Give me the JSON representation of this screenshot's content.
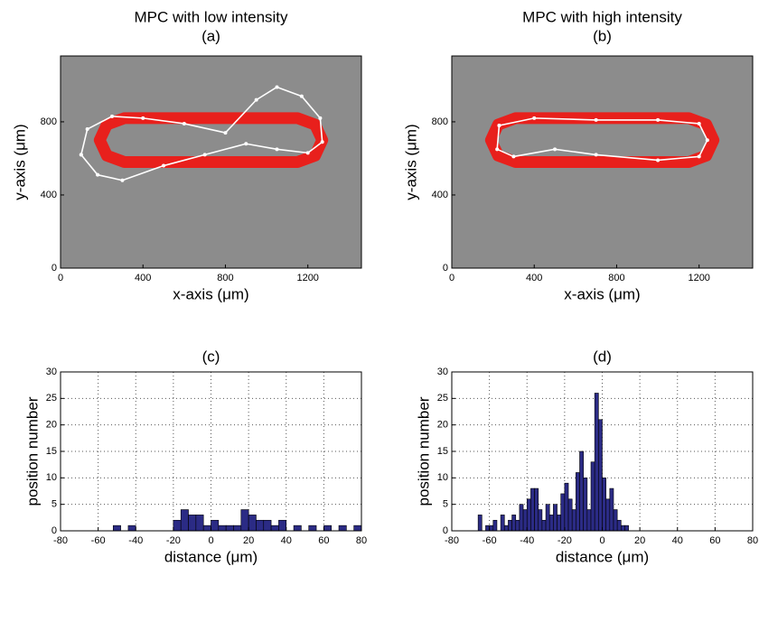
{
  "chart_data": [
    {
      "type": "line",
      "title": "MPC with low intensity",
      "subtitle": "(a)",
      "xlabel": "x-axis (μm)",
      "ylabel": "y-axis (μm)",
      "xlim": [
        0,
        1460
      ],
      "ylim": [
        0,
        1160
      ],
      "xticks": [
        0,
        400,
        800,
        1200
      ],
      "yticks": [
        0,
        400,
        800
      ],
      "background": "#8c8c8c",
      "series": [
        {
          "color": "#e8201c",
          "marker": false,
          "x": [
            310,
            1150,
            1235,
            1270,
            1235,
            1150,
            310,
            225,
            190,
            225,
            310
          ],
          "y": [
            820,
            820,
            785,
            700,
            615,
            580,
            580,
            615,
            700,
            785,
            820
          ]
        },
        {
          "color": "#ffffff",
          "marker": true,
          "x": [
            100,
            130,
            250,
            400,
            600,
            800,
            950,
            1050,
            1170,
            1260,
            1270,
            1200,
            1050,
            900,
            700,
            500,
            300,
            180,
            100
          ],
          "y": [
            620,
            760,
            830,
            820,
            790,
            740,
            920,
            990,
            940,
            820,
            690,
            630,
            650,
            680,
            620,
            560,
            480,
            510,
            620
          ]
        }
      ]
    },
    {
      "type": "line",
      "title": "MPC with high intensity",
      "subtitle": "(b)",
      "xlabel": "x-axis (μm)",
      "ylabel": "y-axis (μm)",
      "xlim": [
        0,
        1460
      ],
      "ylim": [
        0,
        1160
      ],
      "xticks": [
        0,
        400,
        800,
        1200
      ],
      "yticks": [
        0,
        400,
        800
      ],
      "background": "#8c8c8c",
      "series": [
        {
          "color": "#e8201c",
          "marker": false,
          "x": [
            310,
            1150,
            1235,
            1270,
            1235,
            1150,
            310,
            225,
            190,
            225,
            310
          ],
          "y": [
            820,
            820,
            785,
            700,
            615,
            580,
            580,
            615,
            700,
            785,
            820
          ]
        },
        {
          "color": "#ffffff",
          "marker": true,
          "x": [
            230,
            400,
            700,
            1000,
            1200,
            1240,
            1200,
            1000,
            700,
            500,
            300,
            220,
            230
          ],
          "y": [
            780,
            820,
            810,
            810,
            790,
            700,
            610,
            590,
            620,
            650,
            610,
            650,
            780
          ]
        }
      ]
    },
    {
      "type": "histogram",
      "title": "(c)",
      "xlabel": "distance (μm)",
      "ylabel": "position number",
      "color": "#2b2b85",
      "xlim": [
        -80,
        80
      ],
      "ylim": [
        0,
        30
      ],
      "xticks": [
        -80,
        -60,
        -40,
        -20,
        0,
        20,
        40,
        60,
        80
      ],
      "yticks": [
        0,
        5,
        10,
        15,
        20,
        25,
        30
      ],
      "grid": true,
      "bins": [
        -52,
        -48,
        -44,
        -40,
        -36,
        -32,
        -28,
        -24,
        -20,
        -16,
        -12,
        -8,
        -4,
        0,
        4,
        8,
        12,
        16,
        20,
        24,
        28,
        32,
        36,
        40,
        44,
        48,
        52,
        56,
        60,
        64,
        68,
        72,
        76,
        80
      ],
      "counts": [
        1,
        0,
        1,
        0,
        0,
        0,
        0,
        0,
        2,
        4,
        3,
        3,
        1,
        2,
        1,
        1,
        1,
        4,
        3,
        2,
        2,
        1,
        2,
        0,
        1,
        0,
        1,
        0,
        1,
        0,
        1,
        0,
        1
      ]
    },
    {
      "type": "histogram",
      "title": "(d)",
      "xlabel": "distance (μm)",
      "ylabel": "position number",
      "color": "#2b2b85",
      "xlim": [
        -80,
        80
      ],
      "ylim": [
        0,
        30
      ],
      "xticks": [
        -80,
        -60,
        -40,
        -20,
        0,
        20,
        40,
        60,
        80
      ],
      "yticks": [
        0,
        5,
        10,
        15,
        20,
        25,
        30
      ],
      "grid": true,
      "bins": [
        -66,
        -64,
        -62,
        -60,
        -58,
        -56,
        -54,
        -52,
        -50,
        -48,
        -46,
        -44,
        -42,
        -40,
        -38,
        -36,
        -34,
        -32,
        -30,
        -28,
        -26,
        -24,
        -22,
        -20,
        -18,
        -16,
        -14,
        -12,
        -10,
        -8,
        -6,
        -4,
        -2,
        0,
        2,
        4,
        6,
        8,
        10,
        12,
        14
      ],
      "counts": [
        3,
        0,
        1,
        1,
        2,
        0,
        3,
        1,
        2,
        3,
        2,
        5,
        4,
        6,
        8,
        8,
        4,
        2,
        5,
        3,
        5,
        3,
        7,
        9,
        6,
        4,
        11,
        15,
        10,
        4,
        13,
        26,
        21,
        10,
        6,
        8,
        4,
        2,
        1,
        1
      ]
    }
  ]
}
